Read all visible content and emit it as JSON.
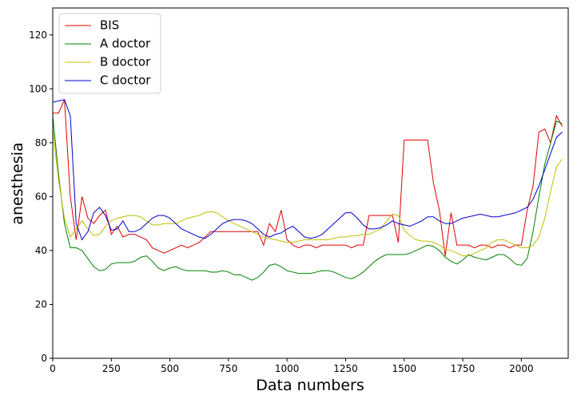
{
  "chart_data": {
    "type": "line",
    "xlabel": "Data numbers",
    "ylabel": "anesthesia",
    "x": [
      0,
      25,
      50,
      75,
      100,
      125,
      150,
      175,
      200,
      225,
      250,
      275,
      300,
      325,
      350,
      375,
      400,
      425,
      450,
      475,
      500,
      525,
      550,
      575,
      600,
      625,
      650,
      675,
      700,
      725,
      750,
      775,
      800,
      825,
      850,
      875,
      900,
      925,
      950,
      975,
      1000,
      1025,
      1050,
      1075,
      1100,
      1125,
      1150,
      1175,
      1200,
      1225,
      1250,
      1275,
      1300,
      1325,
      1350,
      1375,
      1400,
      1425,
      1450,
      1475,
      1500,
      1525,
      1550,
      1575,
      1600,
      1625,
      1650,
      1675,
      1700,
      1725,
      1750,
      1775,
      1800,
      1825,
      1850,
      1875,
      1900,
      1925,
      1950,
      1975,
      2000,
      2025,
      2050,
      2075,
      2100,
      2125,
      2150,
      2175
    ],
    "series": [
      {
        "name": "BIS",
        "color": "#e00000",
        "values": [
          91,
          91,
          96,
          60,
          44,
          60,
          52,
          50,
          53,
          55,
          46,
          49,
          45,
          46,
          46,
          45,
          44,
          41,
          40,
          39,
          40,
          41,
          42,
          41,
          42,
          43,
          45,
          47,
          47,
          47,
          47,
          47,
          47,
          47,
          47,
          47,
          42,
          50,
          47,
          55,
          44,
          42,
          41,
          42,
          42,
          41,
          42,
          42,
          42,
          42,
          42,
          41,
          42,
          42,
          53,
          53,
          53,
          53,
          53,
          43,
          81,
          81,
          81,
          81,
          81,
          65,
          55,
          38,
          54,
          42,
          42,
          42,
          41,
          42,
          42,
          41,
          42,
          42,
          41,
          42,
          42,
          55,
          64,
          84,
          85,
          80,
          90,
          86
        ]
      },
      {
        "name": "A doctor",
        "color": "#008000",
        "values": [
          90,
          68,
          50,
          41,
          41,
          40,
          37,
          34,
          32.5,
          33,
          35,
          35.5,
          35.5,
          35.5,
          36,
          37.5,
          38,
          36,
          33.5,
          32.5,
          33.5,
          34,
          33,
          32.5,
          32.5,
          32.5,
          32.5,
          32,
          32,
          32.5,
          32,
          31,
          31,
          30,
          29,
          30,
          32,
          34.5,
          35,
          34,
          32.5,
          32,
          31.5,
          31.5,
          31.5,
          32,
          32.5,
          32.5,
          32,
          31,
          30,
          29.5,
          30.5,
          32,
          34,
          36,
          37.5,
          38.5,
          38.5,
          38.5,
          38.5,
          39,
          40,
          41,
          42,
          41.5,
          40,
          37.5,
          36,
          35,
          36.5,
          38.5,
          37.5,
          37,
          36.5,
          37.5,
          38.5,
          38.5,
          37,
          35,
          34.5,
          37,
          47,
          60,
          72,
          80,
          88,
          87
        ]
      },
      {
        "name": "B doctor",
        "color": "#bfbf00",
        "values": [
          85,
          66,
          52,
          45,
          48,
          51,
          48,
          45.5,
          46,
          49,
          51,
          52,
          52.5,
          53,
          53,
          52.5,
          51,
          49.5,
          49.5,
          50,
          50,
          50,
          51,
          52,
          52.5,
          53,
          54,
          54.5,
          54,
          52.5,
          51,
          50,
          49,
          48,
          47,
          46,
          45,
          44.5,
          44,
          43.5,
          43,
          43,
          43.5,
          44,
          44,
          44,
          44,
          44,
          44.5,
          45,
          45,
          45.5,
          45.5,
          46,
          46,
          47,
          48,
          51,
          53.5,
          53,
          47.5,
          45.5,
          44,
          43.5,
          43.5,
          43,
          42,
          40.5,
          40,
          39,
          38,
          38,
          39,
          40,
          41,
          43,
          44,
          44,
          43,
          42,
          41,
          41,
          42,
          45,
          52,
          62,
          71,
          74
        ]
      },
      {
        "name": "C doctor",
        "color": "#0000cc",
        "values": [
          95,
          95.5,
          96,
          90,
          50,
          44,
          47,
          54,
          56,
          53,
          47.5,
          48,
          51,
          47,
          47,
          48,
          50,
          52,
          53,
          53,
          52,
          50,
          48,
          47,
          46,
          45,
          44.5,
          46,
          48,
          50,
          51,
          51.5,
          51.5,
          51,
          50,
          48,
          46,
          45,
          46,
          46.5,
          48,
          49,
          47,
          45,
          44.5,
          45,
          46,
          48,
          50,
          52,
          54,
          54,
          52,
          49.5,
          48,
          48,
          48.5,
          49.5,
          51,
          50,
          49.5,
          49,
          50,
          51,
          52.5,
          52.5,
          51,
          50,
          50,
          51,
          52,
          52.5,
          53,
          53.5,
          53,
          52.5,
          52.5,
          53,
          53.5,
          54,
          55,
          56,
          59,
          64,
          70,
          76,
          82,
          84
        ]
      }
    ],
    "xlim": [
      0,
      2200
    ],
    "ylim": [
      0,
      130
    ],
    "xticks": [
      0,
      250,
      500,
      750,
      1000,
      1250,
      1500,
      1750,
      2000
    ],
    "yticks": [
      0,
      20,
      40,
      60,
      80,
      100,
      120
    ],
    "legend": "upper left",
    "grid": false
  }
}
